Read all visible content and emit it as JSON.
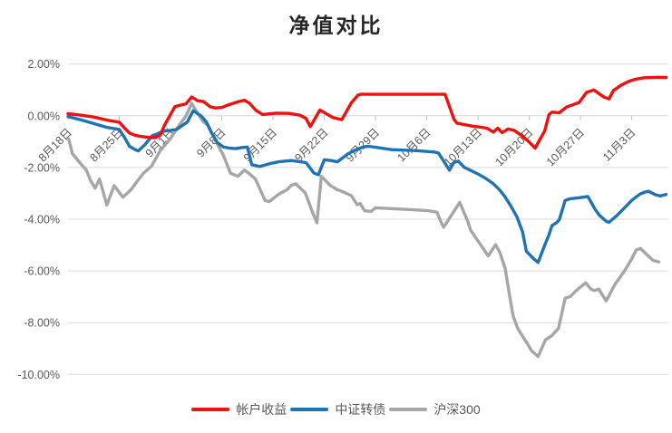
{
  "title": {
    "text": "净值对比"
  },
  "legend": {
    "position": "bottom",
    "items": [
      {
        "label": "帐户收益",
        "color": "#ee1111"
      },
      {
        "label": "中证转债",
        "color": "#1f73b3"
      },
      {
        "label": "沪深300",
        "color": "#a6a6a6"
      }
    ]
  },
  "axes": {
    "y_tick_labels": [
      "2.00%",
      "0.00%",
      "-2.00%",
      "-4.00%",
      "-6.00%",
      "-8.00%",
      "-10.00%"
    ],
    "x_tick_labels": [
      "8月18日",
      "8月25日",
      "9月1日",
      "9月8日",
      "9月15日",
      "9月22日",
      "9月29日",
      "10月6日",
      "10月13日",
      "10月20日",
      "10月27日",
      "11月3日"
    ]
  },
  "chart_data": {
    "type": "line",
    "title": "净值对比",
    "xlabel": "",
    "ylabel": "",
    "x_unit": "calendar days since 8月18日; tick labels are weekly Fridays",
    "x_range_days": [
      0,
      82
    ],
    "x_ticks": [
      {
        "day": 0,
        "label": "8月18日"
      },
      {
        "day": 7,
        "label": "8月25日"
      },
      {
        "day": 14,
        "label": "9月1日"
      },
      {
        "day": 21,
        "label": "9月8日"
      },
      {
        "day": 28,
        "label": "9月15日"
      },
      {
        "day": 35,
        "label": "9月22日"
      },
      {
        "day": 42,
        "label": "9月29日"
      },
      {
        "day": 49,
        "label": "10月6日"
      },
      {
        "day": 56,
        "label": "10月13日"
      },
      {
        "day": 63,
        "label": "10月20日"
      },
      {
        "day": 70,
        "label": "10月27日"
      },
      {
        "day": 77,
        "label": "11月3日"
      }
    ],
    "y_ticks": [
      {
        "value": 2,
        "label": "2.00%"
      },
      {
        "value": 0,
        "label": "0.00%"
      },
      {
        "value": -2,
        "label": "-2.00%"
      },
      {
        "value": -4,
        "label": "-4.00%"
      },
      {
        "value": -6,
        "label": "-6.00%"
      },
      {
        "value": -8,
        "label": "-8.00%"
      },
      {
        "value": -10,
        "label": "-10.00%"
      }
    ],
    "y_range": [
      -10,
      2
    ],
    "grid": true,
    "legend_position": "bottom",
    "series": [
      {
        "name": "沪深300",
        "id": "csi300-line",
        "color": "#a6a6a6",
        "points": [
          [
            0.1,
            -0.9
          ],
          [
            0.6,
            -1.46
          ],
          [
            1.6,
            -1.81
          ],
          [
            2.5,
            -2.1
          ],
          [
            3.1,
            -2.51
          ],
          [
            3.7,
            -2.8
          ],
          [
            4.3,
            -2.45
          ],
          [
            5.3,
            -3.45
          ],
          [
            6.3,
            -2.7
          ],
          [
            7.5,
            -3.15
          ],
          [
            8.6,
            -2.86
          ],
          [
            9.5,
            -2.51
          ],
          [
            10.3,
            -2.22
          ],
          [
            11.4,
            -1.95
          ],
          [
            12.6,
            -1.35
          ],
          [
            14,
            -0.88
          ],
          [
            15.2,
            -0.36
          ],
          [
            16.1,
            -0.01
          ],
          [
            16.9,
            0.48
          ],
          [
            17.7,
            0.1
          ],
          [
            18.5,
            -0.24
          ],
          [
            19.1,
            -0.36
          ],
          [
            20.1,
            -0.94
          ],
          [
            21.2,
            -1.52
          ],
          [
            22.2,
            -2.22
          ],
          [
            23.2,
            -2.34
          ],
          [
            24.1,
            -2.1
          ],
          [
            24.7,
            -2.22
          ],
          [
            25.6,
            -2.45
          ],
          [
            26.9,
            -3.27
          ],
          [
            27.5,
            -3.32
          ],
          [
            28.8,
            -3.03
          ],
          [
            29.9,
            -2.86
          ],
          [
            30.5,
            -2.69
          ],
          [
            31.1,
            -2.63
          ],
          [
            32.4,
            -2.98
          ],
          [
            33.4,
            -3.73
          ],
          [
            34,
            -4.14
          ],
          [
            34.6,
            -2.34
          ],
          [
            35.8,
            -2.69
          ],
          [
            36.8,
            -2.86
          ],
          [
            37.4,
            -2.92
          ],
          [
            38.7,
            -3.09
          ],
          [
            39.5,
            -3.44
          ],
          [
            39.9,
            -3.39
          ],
          [
            40.5,
            -3.67
          ],
          [
            41.4,
            -3.7
          ],
          [
            42,
            -3.56
          ],
          [
            46.3,
            -3.62
          ],
          [
            49.2,
            -3.67
          ],
          [
            50.4,
            -3.73
          ],
          [
            50.9,
            -4.08
          ],
          [
            51.3,
            -4.31
          ],
          [
            53.5,
            -3.35
          ],
          [
            54.6,
            -4.08
          ],
          [
            55,
            -4.43
          ],
          [
            57.4,
            -5.42
          ],
          [
            58.4,
            -4.98
          ],
          [
            59,
            -5.3
          ],
          [
            59.7,
            -5.9
          ],
          [
            60.3,
            -6.93
          ],
          [
            60.8,
            -7.74
          ],
          [
            61.4,
            -8.21
          ],
          [
            61.9,
            -8.44
          ],
          [
            62.7,
            -8.79
          ],
          [
            63.3,
            -9.08
          ],
          [
            64.2,
            -9.31
          ],
          [
            65.2,
            -8.67
          ],
          [
            66.1,
            -8.5
          ],
          [
            67,
            -8.21
          ],
          [
            67.9,
            -7.05
          ],
          [
            68.6,
            -6.99
          ],
          [
            69.4,
            -6.76
          ],
          [
            70.2,
            -6.58
          ],
          [
            70.7,
            -6.46
          ],
          [
            71.4,
            -6.7
          ],
          [
            71.9,
            -6.76
          ],
          [
            72.5,
            -6.7
          ],
          [
            73.5,
            -7.16
          ],
          [
            74.7,
            -6.52
          ],
          [
            76,
            -6
          ],
          [
            77,
            -5.53
          ],
          [
            77.6,
            -5.19
          ],
          [
            78.2,
            -5.13
          ],
          [
            78.8,
            -5.3
          ],
          [
            79.9,
            -5.59
          ],
          [
            80.7,
            -5.65
          ]
        ]
      },
      {
        "name": "中证转债",
        "id": "csi-convertible-bond-line",
        "color": "#1f73b3",
        "points": [
          [
            0,
            -0.03
          ],
          [
            1.8,
            -0.16
          ],
          [
            3.5,
            -0.3
          ],
          [
            5.2,
            -0.44
          ],
          [
            7,
            -0.53
          ],
          [
            7.8,
            -0.88
          ],
          [
            8.4,
            -1.18
          ],
          [
            9.1,
            -1.3
          ],
          [
            9.6,
            -1.36
          ],
          [
            10.5,
            -1.12
          ],
          [
            11.5,
            -0.77
          ],
          [
            12.1,
            -0.71
          ],
          [
            13,
            -0.59
          ],
          [
            13.9,
            -0.57
          ],
          [
            14.8,
            -0.53
          ],
          [
            15.7,
            -0.36
          ],
          [
            16.3,
            -0.24
          ],
          [
            17.1,
            0.2
          ],
          [
            18.2,
            -0.01
          ],
          [
            18.9,
            -0.24
          ],
          [
            19.6,
            -0.65
          ],
          [
            20.4,
            -1.04
          ],
          [
            21.2,
            -1.2
          ],
          [
            22,
            -1.25
          ],
          [
            22.9,
            -1.27
          ],
          [
            23.7,
            -1.23
          ],
          [
            24.5,
            -1.21
          ],
          [
            25.1,
            -1.89
          ],
          [
            26.2,
            -1.96
          ],
          [
            27.6,
            -1.85
          ],
          [
            28.8,
            -1.78
          ],
          [
            30.5,
            -1.73
          ],
          [
            31.7,
            -1.78
          ],
          [
            32.5,
            -1.81
          ],
          [
            33.6,
            -2.22
          ],
          [
            34.2,
            -2.28
          ],
          [
            35,
            -1.7
          ],
          [
            35.9,
            -1.73
          ],
          [
            36.8,
            -1.78
          ],
          [
            38.3,
            -1.46
          ],
          [
            39.5,
            -1.29
          ],
          [
            40.4,
            -1.2
          ],
          [
            41.1,
            -1.18
          ],
          [
            44.2,
            -1.31
          ],
          [
            47.6,
            -1.35
          ],
          [
            50,
            -1.4
          ],
          [
            50.6,
            -1.44
          ],
          [
            51.3,
            -1.75
          ],
          [
            52.1,
            -2.1
          ],
          [
            52.7,
            -1.81
          ],
          [
            53.3,
            -1.75
          ],
          [
            54.1,
            -1.99
          ],
          [
            55.2,
            -2.14
          ],
          [
            56.2,
            -2.28
          ],
          [
            57.2,
            -2.45
          ],
          [
            58.1,
            -2.63
          ],
          [
            58.9,
            -2.85
          ],
          [
            59.6,
            -3.1
          ],
          [
            60.4,
            -3.45
          ],
          [
            61.3,
            -3.9
          ],
          [
            62.1,
            -4.5
          ],
          [
            62.6,
            -5.24
          ],
          [
            63.6,
            -5.53
          ],
          [
            64.2,
            -5.67
          ],
          [
            65.1,
            -5.01
          ],
          [
            65.7,
            -4.6
          ],
          [
            66.1,
            -4.25
          ],
          [
            66.7,
            -4.14
          ],
          [
            67.1,
            -4.02
          ],
          [
            67.9,
            -3.27
          ],
          [
            68.6,
            -3.21
          ],
          [
            69.8,
            -3.17
          ],
          [
            71,
            -3.12
          ],
          [
            72,
            -3.62
          ],
          [
            72.6,
            -3.85
          ],
          [
            73.5,
            -4.08
          ],
          [
            73.9,
            -4.12
          ],
          [
            75,
            -3.85
          ],
          [
            76,
            -3.56
          ],
          [
            77,
            -3.27
          ],
          [
            78.1,
            -3.03
          ],
          [
            78.8,
            -2.95
          ],
          [
            79.3,
            -2.92
          ],
          [
            80.2,
            -3.05
          ],
          [
            80.9,
            -3.1
          ],
          [
            81.7,
            -3.04
          ]
        ]
      },
      {
        "name": "帐户收益",
        "id": "account-return-line",
        "color": "#ee1111",
        "points": [
          [
            0,
            0.08
          ],
          [
            1.8,
            0.02
          ],
          [
            3.5,
            -0.05
          ],
          [
            5.2,
            -0.16
          ],
          [
            7,
            -0.25
          ],
          [
            7.8,
            -0.5
          ],
          [
            8.4,
            -0.67
          ],
          [
            9.1,
            -0.75
          ],
          [
            9.9,
            -0.8
          ],
          [
            11.2,
            -0.84
          ],
          [
            11.9,
            -0.85
          ],
          [
            12.6,
            -0.75
          ],
          [
            13.2,
            -0.35
          ],
          [
            13.9,
            0
          ],
          [
            14.6,
            0.35
          ],
          [
            15.2,
            0.4
          ],
          [
            16.1,
            0.46
          ],
          [
            16.9,
            0.73
          ],
          [
            17.7,
            0.58
          ],
          [
            18.5,
            0.55
          ],
          [
            19.4,
            0.35
          ],
          [
            20.1,
            0.3
          ],
          [
            21,
            0.32
          ],
          [
            21.9,
            0.42
          ],
          [
            23.3,
            0.55
          ],
          [
            24.1,
            0.6
          ],
          [
            24.8,
            0.48
          ],
          [
            25.7,
            0.2
          ],
          [
            26.6,
            0.05
          ],
          [
            28.4,
            0.1
          ],
          [
            30.2,
            0.09
          ],
          [
            31.7,
            0.02
          ],
          [
            32.5,
            -0.1
          ],
          [
            33.1,
            -0.42
          ],
          [
            34.4,
            0.22
          ],
          [
            36.2,
            -0.07
          ],
          [
            37.4,
            -0.15
          ],
          [
            38.7,
            0.5
          ],
          [
            39.6,
            0.8
          ],
          [
            40,
            0.83
          ],
          [
            51.5,
            0.83
          ],
          [
            52.7,
            -0.13
          ],
          [
            53.1,
            -0.28
          ],
          [
            53.9,
            -0.33
          ],
          [
            55.2,
            -0.4
          ],
          [
            56.4,
            -0.44
          ],
          [
            57.2,
            -0.48
          ],
          [
            58.1,
            -0.63
          ],
          [
            58.7,
            -0.48
          ],
          [
            59.3,
            -0.65
          ],
          [
            60.1,
            -0.51
          ],
          [
            60.9,
            -0.56
          ],
          [
            62,
            -0.77
          ],
          [
            63,
            -1.02
          ],
          [
            63.8,
            -1.25
          ],
          [
            65.1,
            -0.59
          ],
          [
            65.7,
            0.05
          ],
          [
            66.1,
            0.14
          ],
          [
            67.1,
            0.12
          ],
          [
            68.1,
            0.34
          ],
          [
            68.9,
            0.42
          ],
          [
            69.8,
            0.51
          ],
          [
            70.8,
            0.9
          ],
          [
            71.8,
            1
          ],
          [
            73.2,
            0.72
          ],
          [
            73.9,
            0.65
          ],
          [
            74.5,
            0.98
          ],
          [
            75.6,
            1.19
          ],
          [
            76.6,
            1.33
          ],
          [
            77.6,
            1.42
          ],
          [
            78.7,
            1.47
          ],
          [
            80.7,
            1.49
          ],
          [
            81.7,
            1.48
          ]
        ]
      }
    ],
    "styles": {
      "gridline_color": "#d9d9d9",
      "tick_color": "#bfbfbf",
      "axis_label_color": "#595959",
      "line_width": 3.4
    }
  }
}
